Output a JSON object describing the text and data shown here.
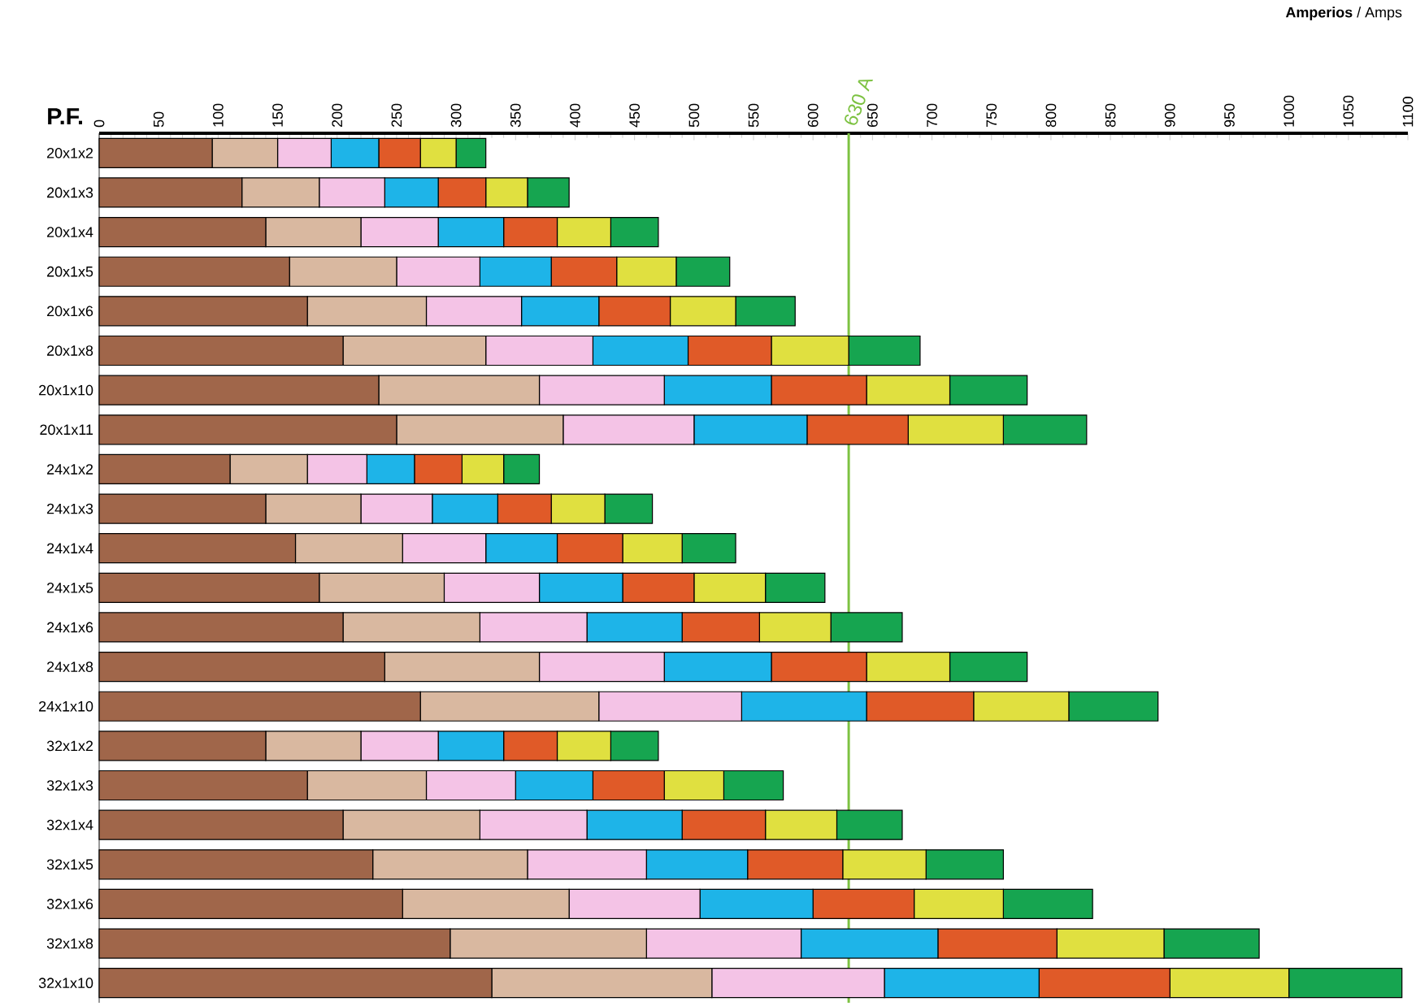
{
  "chart_data": {
    "type": "bar",
    "orientation": "horizontal",
    "stacked": true,
    "title": "**Amperios** / Amps",
    "ylabel": "P.F.",
    "categories": [
      "20x1x2",
      "20x1x3",
      "20x1x4",
      "20x1x5",
      "20x1x6",
      "20x1x8",
      "20x1x10",
      "20x1x11",
      "24x1x2",
      "24x1x3",
      "24x1x4",
      "24x1x5",
      "24x1x6",
      "24x1x8",
      "24x1x10",
      "32x1x2",
      "32x1x3",
      "32x1x4",
      "32x1x5",
      "32x1x6",
      "32x1x8",
      "32x1x10"
    ],
    "series": [
      {
        "color": "#a0664a",
        "values": [
          95,
          120,
          140,
          160,
          175,
          205,
          235,
          250,
          110,
          140,
          165,
          185,
          205,
          240,
          270,
          140,
          175,
          205,
          230,
          255,
          295,
          330
        ]
      },
      {
        "color": "#d9b8a0",
        "values": [
          55,
          65,
          80,
          90,
          100,
          120,
          135,
          140,
          65,
          80,
          90,
          105,
          115,
          130,
          150,
          80,
          100,
          115,
          130,
          140,
          165,
          185
        ]
      },
      {
        "color": "#f4c3e6",
        "values": [
          45,
          55,
          65,
          70,
          80,
          90,
          105,
          110,
          50,
          60,
          70,
          80,
          90,
          105,
          120,
          65,
          75,
          90,
          100,
          110,
          130,
          145
        ]
      },
      {
        "color": "#1eb4e8",
        "values": [
          40,
          45,
          55,
          60,
          65,
          80,
          90,
          95,
          40,
          55,
          60,
          70,
          80,
          90,
          105,
          55,
          65,
          80,
          85,
          95,
          115,
          130
        ]
      },
      {
        "color": "#e05a28",
        "values": [
          35,
          40,
          45,
          55,
          60,
          70,
          80,
          85,
          40,
          45,
          55,
          60,
          65,
          80,
          90,
          45,
          60,
          70,
          80,
          85,
          100,
          110
        ]
      },
      {
        "color": "#e0e040",
        "values": [
          30,
          35,
          45,
          50,
          55,
          65,
          70,
          80,
          35,
          45,
          50,
          60,
          60,
          70,
          80,
          45,
          50,
          60,
          70,
          75,
          90,
          100
        ]
      },
      {
        "color": "#16a550",
        "values": [
          25,
          35,
          40,
          45,
          50,
          60,
          65,
          70,
          30,
          40,
          45,
          50,
          60,
          65,
          75,
          40,
          50,
          55,
          65,
          75,
          80,
          95
        ]
      }
    ],
    "xlim": [
      0,
      1100
    ],
    "xticks": [
      0,
      50,
      100,
      150,
      200,
      250,
      300,
      350,
      400,
      450,
      500,
      550,
      600,
      650,
      700,
      750,
      800,
      850,
      900,
      950,
      1000,
      1050,
      1100
    ],
    "ref_lines": [
      {
        "axis": "x",
        "value": 630,
        "label": "630 A",
        "color": "#7dc242"
      }
    ]
  }
}
